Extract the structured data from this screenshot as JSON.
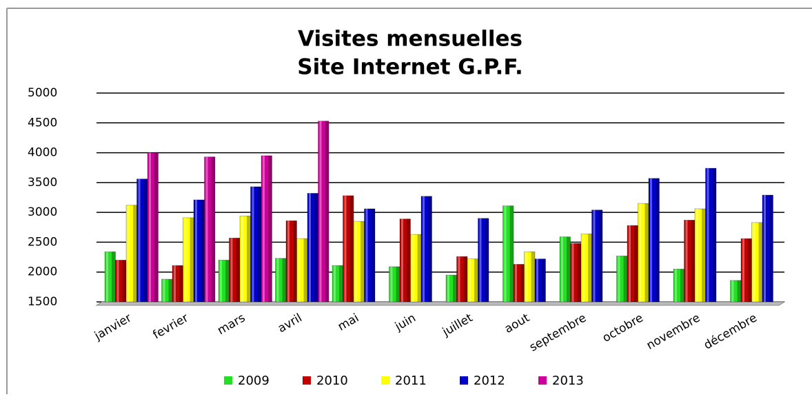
{
  "chart_data": {
    "type": "bar",
    "title": [
      "Visites mensuelles",
      "Site Internet G.P.F."
    ],
    "categories": [
      "janvier",
      "fevrier",
      "mars",
      "avril",
      "mai",
      "juin",
      "juillet",
      "aout",
      "septembre",
      "octobre",
      "novembre",
      "décembre"
    ],
    "series": [
      {
        "name": "2009",
        "color": "#22e022",
        "values": [
          2340,
          1880,
          2200,
          2230,
          2110,
          2090,
          1950,
          3110,
          2590,
          2270,
          2050,
          1860
        ]
      },
      {
        "name": "2010",
        "color": "#c00000",
        "values": [
          2200,
          2110,
          2570,
          2860,
          3280,
          2890,
          2260,
          2130,
          2480,
          2780,
          2870,
          2560
        ]
      },
      {
        "name": "2011",
        "color": "#ffff00",
        "values": [
          3120,
          2910,
          2940,
          2560,
          2850,
          2630,
          2220,
          2340,
          2640,
          3150,
          3060,
          2830
        ]
      },
      {
        "name": "2012",
        "color": "#0000cc",
        "values": [
          3560,
          3210,
          3430,
          3320,
          3060,
          3270,
          2900,
          2220,
          3040,
          3570,
          3740,
          3290
        ]
      },
      {
        "name": "2013",
        "color": "#cc0099",
        "values": [
          4000,
          3930,
          3950,
          4530,
          null,
          null,
          null,
          null,
          null,
          null,
          null,
          null
        ]
      }
    ],
    "ylim": [
      1500,
      5000
    ],
    "yticks": [
      1500,
      2000,
      2500,
      3000,
      3500,
      4000,
      4500,
      5000
    ],
    "grid": true,
    "legend": "bottom"
  }
}
